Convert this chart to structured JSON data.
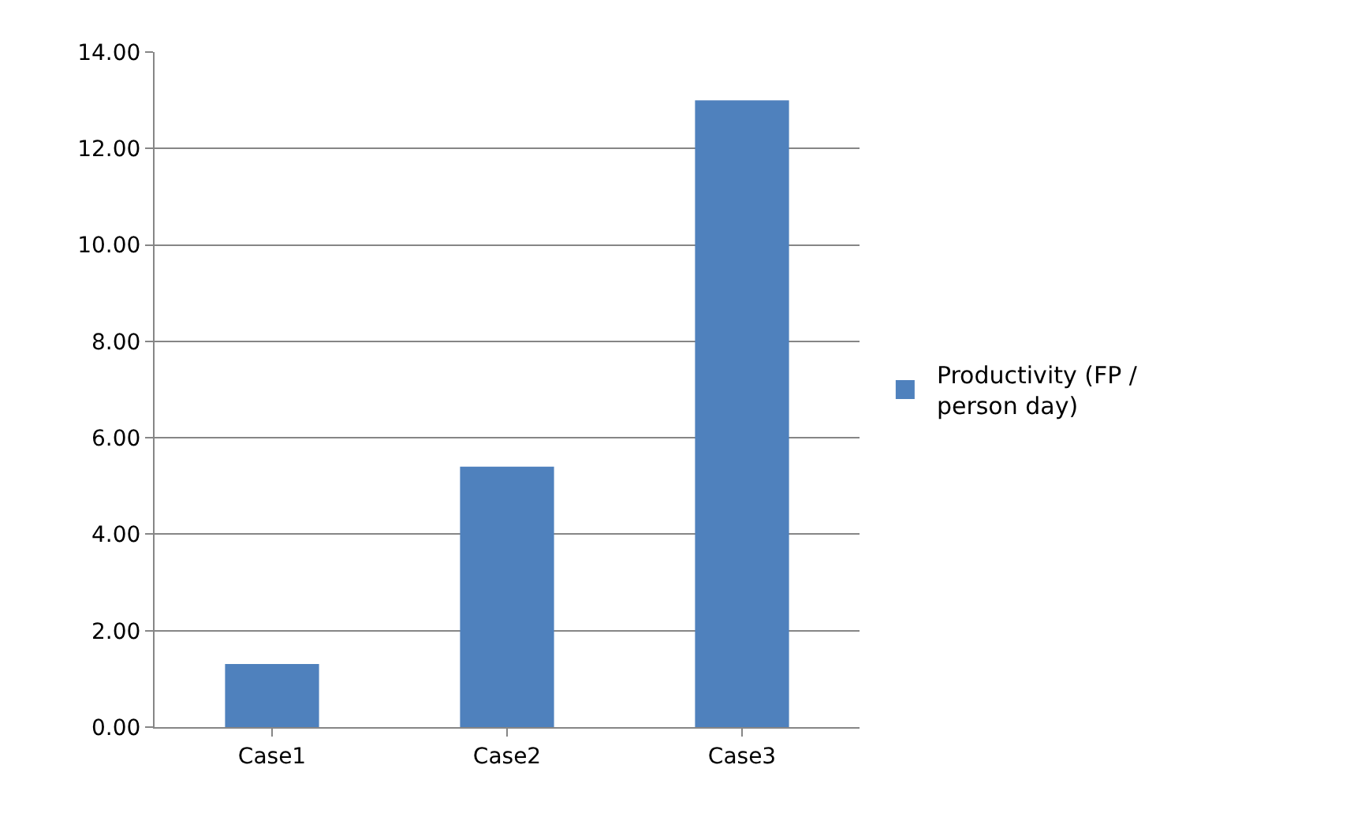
{
  "chart_data": {
    "type": "bar",
    "categories": [
      "Case1",
      "Case2",
      "Case3"
    ],
    "series": [
      {
        "name": "Productivity (FP / person day)",
        "color": "#4f81bd",
        "values": [
          1.31,
          5.4,
          13.0
        ]
      }
    ],
    "ylim": [
      0,
      14
    ],
    "yticks": [
      {
        "value": 0,
        "label": "0.00"
      },
      {
        "value": 2,
        "label": "2.00"
      },
      {
        "value": 4,
        "label": "4.00"
      },
      {
        "value": 6,
        "label": "6.00"
      },
      {
        "value": 8,
        "label": "8.00"
      },
      {
        "value": 10,
        "label": "10.00"
      },
      {
        "value": 12,
        "label": "12.00"
      },
      {
        "value": 14,
        "label": "14.00"
      }
    ],
    "grid": "y",
    "legend": "right"
  }
}
